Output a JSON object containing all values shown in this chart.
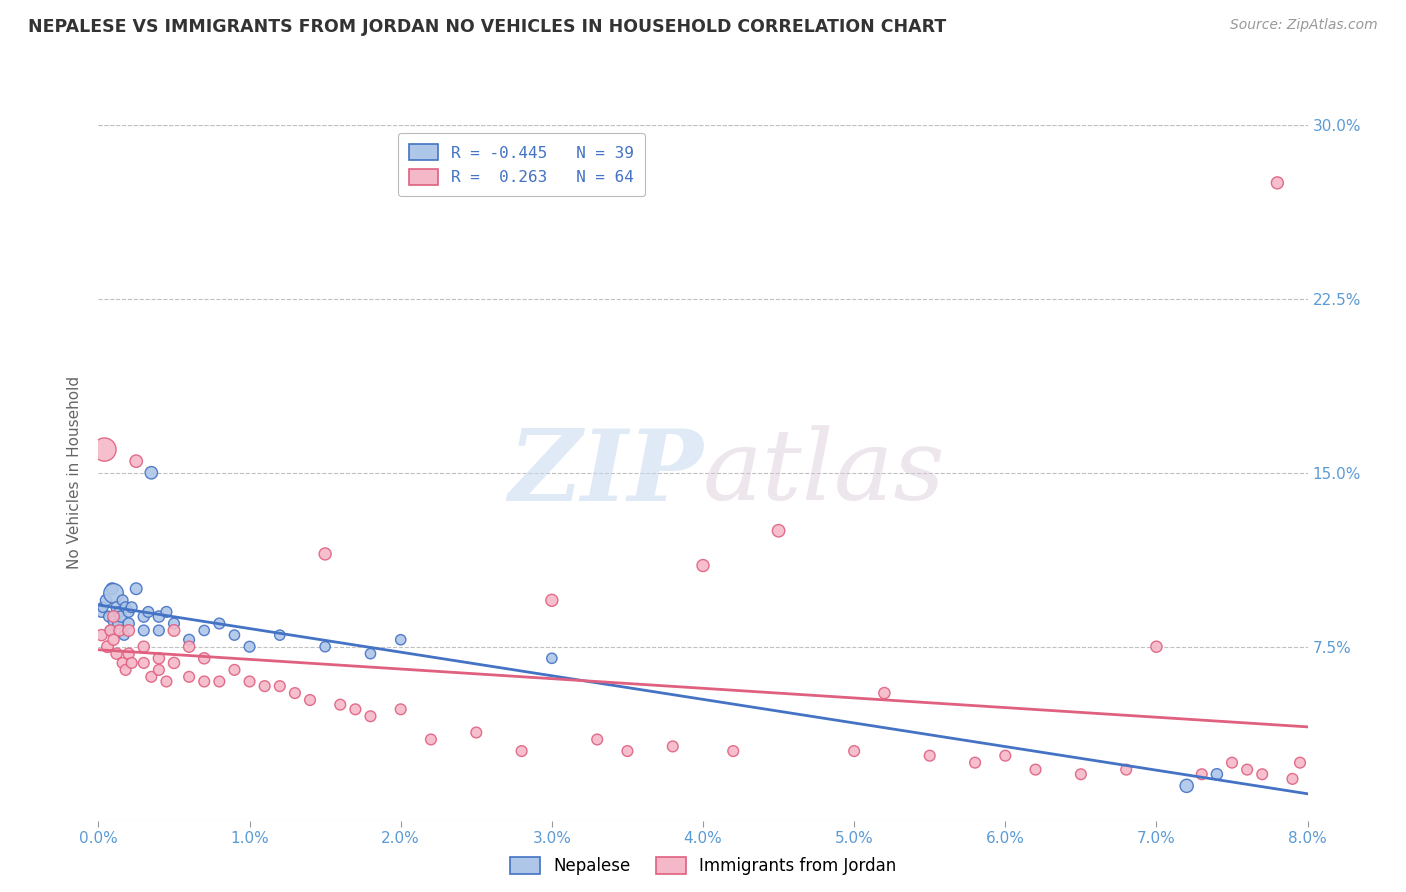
{
  "title": "NEPALESE VS IMMIGRANTS FROM JORDAN NO VEHICLES IN HOUSEHOLD CORRELATION CHART",
  "source": "Source: ZipAtlas.com",
  "ylabel": "No Vehicles in Household",
  "legend_label_bottom": [
    "Nepalese",
    "Immigrants from Jordan"
  ],
  "legend_blue_text": "R = -0.445   N = 39",
  "legend_pink_text": "R =  0.263   N = 64",
  "blue_color": "#aec6e8",
  "pink_color": "#f4b8c8",
  "blue_line_color": "#4472c4",
  "pink_line_color": "#e06080",
  "axis_label_color": "#5b9bd5",
  "grid_color": "#c0c0c0",
  "watermark_zip": "ZIP",
  "watermark_atlas": "atlas",
  "xlim": [
    0.0,
    0.08
  ],
  "ylim": [
    0.0,
    0.3
  ],
  "xticks": [
    0.0,
    0.01,
    0.02,
    0.03,
    0.04,
    0.05,
    0.06,
    0.07,
    0.08
  ],
  "xticklabels": [
    "0.0%",
    "1.0%",
    "2.0%",
    "3.0%",
    "4.0%",
    "5.0%",
    "6.0%",
    "7.0%",
    "8.0%"
  ],
  "yticks": [
    0.075,
    0.15,
    0.225,
    0.3
  ],
  "yticklabels": [
    "7.5%",
    "15.0%",
    "22.5%",
    "30.0%"
  ],
  "nepalese_x": [
    0.0002,
    0.0003,
    0.0005,
    0.0007,
    0.0008,
    0.0009,
    0.001,
    0.001,
    0.0012,
    0.0013,
    0.0014,
    0.0015,
    0.0016,
    0.0017,
    0.0018,
    0.002,
    0.002,
    0.0022,
    0.0025,
    0.003,
    0.003,
    0.0033,
    0.0035,
    0.004,
    0.004,
    0.0045,
    0.005,
    0.006,
    0.007,
    0.008,
    0.009,
    0.01,
    0.012,
    0.015,
    0.018,
    0.02,
    0.03,
    0.072,
    0.074
  ],
  "nepalese_y": [
    0.09,
    0.092,
    0.095,
    0.088,
    0.082,
    0.1,
    0.098,
    0.086,
    0.092,
    0.085,
    0.09,
    0.088,
    0.095,
    0.08,
    0.092,
    0.085,
    0.09,
    0.092,
    0.1,
    0.088,
    0.082,
    0.09,
    0.15,
    0.088,
    0.082,
    0.09,
    0.085,
    0.078,
    0.082,
    0.085,
    0.08,
    0.075,
    0.08,
    0.075,
    0.072,
    0.078,
    0.07,
    0.015,
    0.02
  ],
  "nepalese_size": [
    60,
    55,
    65,
    60,
    55,
    70,
    200,
    60,
    65,
    60,
    60,
    65,
    60,
    55,
    60,
    65,
    60,
    60,
    70,
    65,
    60,
    60,
    80,
    65,
    60,
    60,
    60,
    60,
    55,
    60,
    55,
    60,
    55,
    55,
    55,
    55,
    55,
    90,
    65
  ],
  "jordan_x": [
    0.0002,
    0.0004,
    0.0006,
    0.0008,
    0.001,
    0.001,
    0.0012,
    0.0014,
    0.0016,
    0.0018,
    0.002,
    0.002,
    0.0022,
    0.0025,
    0.003,
    0.003,
    0.0035,
    0.004,
    0.004,
    0.0045,
    0.005,
    0.005,
    0.006,
    0.006,
    0.007,
    0.007,
    0.008,
    0.009,
    0.01,
    0.011,
    0.012,
    0.013,
    0.014,
    0.015,
    0.016,
    0.017,
    0.018,
    0.02,
    0.022,
    0.025,
    0.028,
    0.03,
    0.033,
    0.035,
    0.038,
    0.04,
    0.042,
    0.045,
    0.05,
    0.052,
    0.055,
    0.058,
    0.06,
    0.062,
    0.065,
    0.068,
    0.07,
    0.073,
    0.075,
    0.076,
    0.077,
    0.078,
    0.079,
    0.0795
  ],
  "jordan_y": [
    0.08,
    0.16,
    0.075,
    0.082,
    0.088,
    0.078,
    0.072,
    0.082,
    0.068,
    0.065,
    0.082,
    0.072,
    0.068,
    0.155,
    0.075,
    0.068,
    0.062,
    0.07,
    0.065,
    0.06,
    0.082,
    0.068,
    0.075,
    0.062,
    0.07,
    0.06,
    0.06,
    0.065,
    0.06,
    0.058,
    0.058,
    0.055,
    0.052,
    0.115,
    0.05,
    0.048,
    0.045,
    0.048,
    0.035,
    0.038,
    0.03,
    0.095,
    0.035,
    0.03,
    0.032,
    0.11,
    0.03,
    0.125,
    0.03,
    0.055,
    0.028,
    0.025,
    0.028,
    0.022,
    0.02,
    0.022,
    0.075,
    0.02,
    0.025,
    0.022,
    0.02,
    0.275,
    0.018,
    0.025
  ],
  "jordan_size": [
    65,
    280,
    70,
    65,
    70,
    65,
    65,
    65,
    60,
    60,
    70,
    65,
    60,
    80,
    65,
    60,
    60,
    65,
    60,
    60,
    70,
    65,
    65,
    60,
    65,
    60,
    60,
    60,
    60,
    60,
    60,
    60,
    60,
    75,
    60,
    60,
    60,
    60,
    60,
    60,
    60,
    75,
    60,
    60,
    60,
    75,
    60,
    80,
    60,
    65,
    60,
    60,
    60,
    60,
    60,
    60,
    65,
    60,
    60,
    60,
    60,
    75,
    60,
    60
  ]
}
